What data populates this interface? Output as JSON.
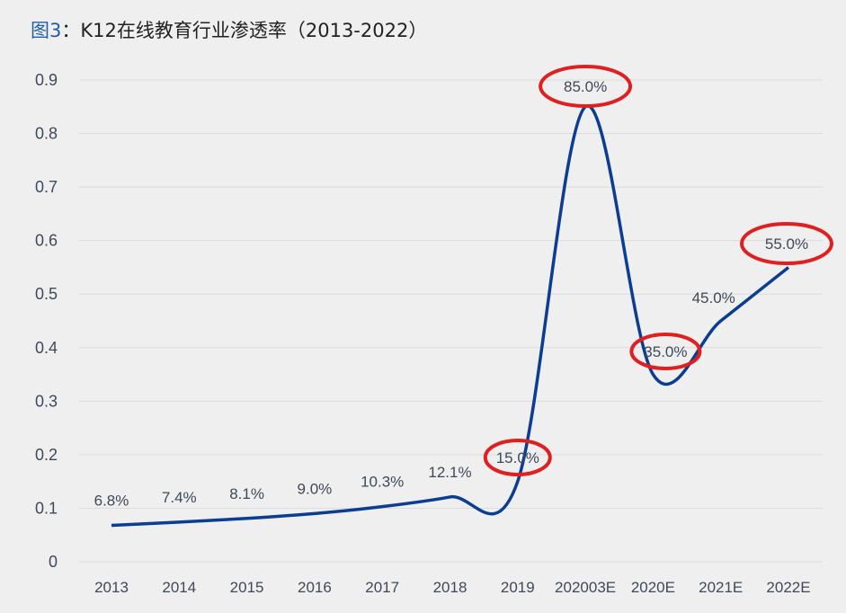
{
  "title_prefix": "图3",
  "title": "：K12在线教育行业渗透率（2013-2022）",
  "chart_data": {
    "type": "line",
    "categories": [
      "2013",
      "2014",
      "2015",
      "2016",
      "2017",
      "2018",
      "2019",
      "202003E",
      "2020E",
      "2021E",
      "2022E"
    ],
    "values": [
      0.068,
      0.074,
      0.081,
      0.09,
      0.103,
      0.121,
      0.15,
      0.85,
      0.35,
      0.45,
      0.55
    ],
    "data_labels": [
      "6.8%",
      "7.4%",
      "8.1%",
      "9.0%",
      "10.3%",
      "12.1%",
      "15.0%",
      "85.0%",
      "35.0%",
      "45.0%",
      "55.0%"
    ],
    "highlighted": [
      "2019",
      "202003E",
      "2020E",
      "2022E"
    ],
    "yticks": [
      "0",
      "0.1",
      "0.2",
      "0.3",
      "0.4",
      "0.5",
      "0.6",
      "0.7",
      "0.8",
      "0.9"
    ],
    "ylim": [
      0,
      0.9
    ],
    "grid": true,
    "smooth": true,
    "line_color": "#0b3d91",
    "highlight_color": "#e02020"
  }
}
